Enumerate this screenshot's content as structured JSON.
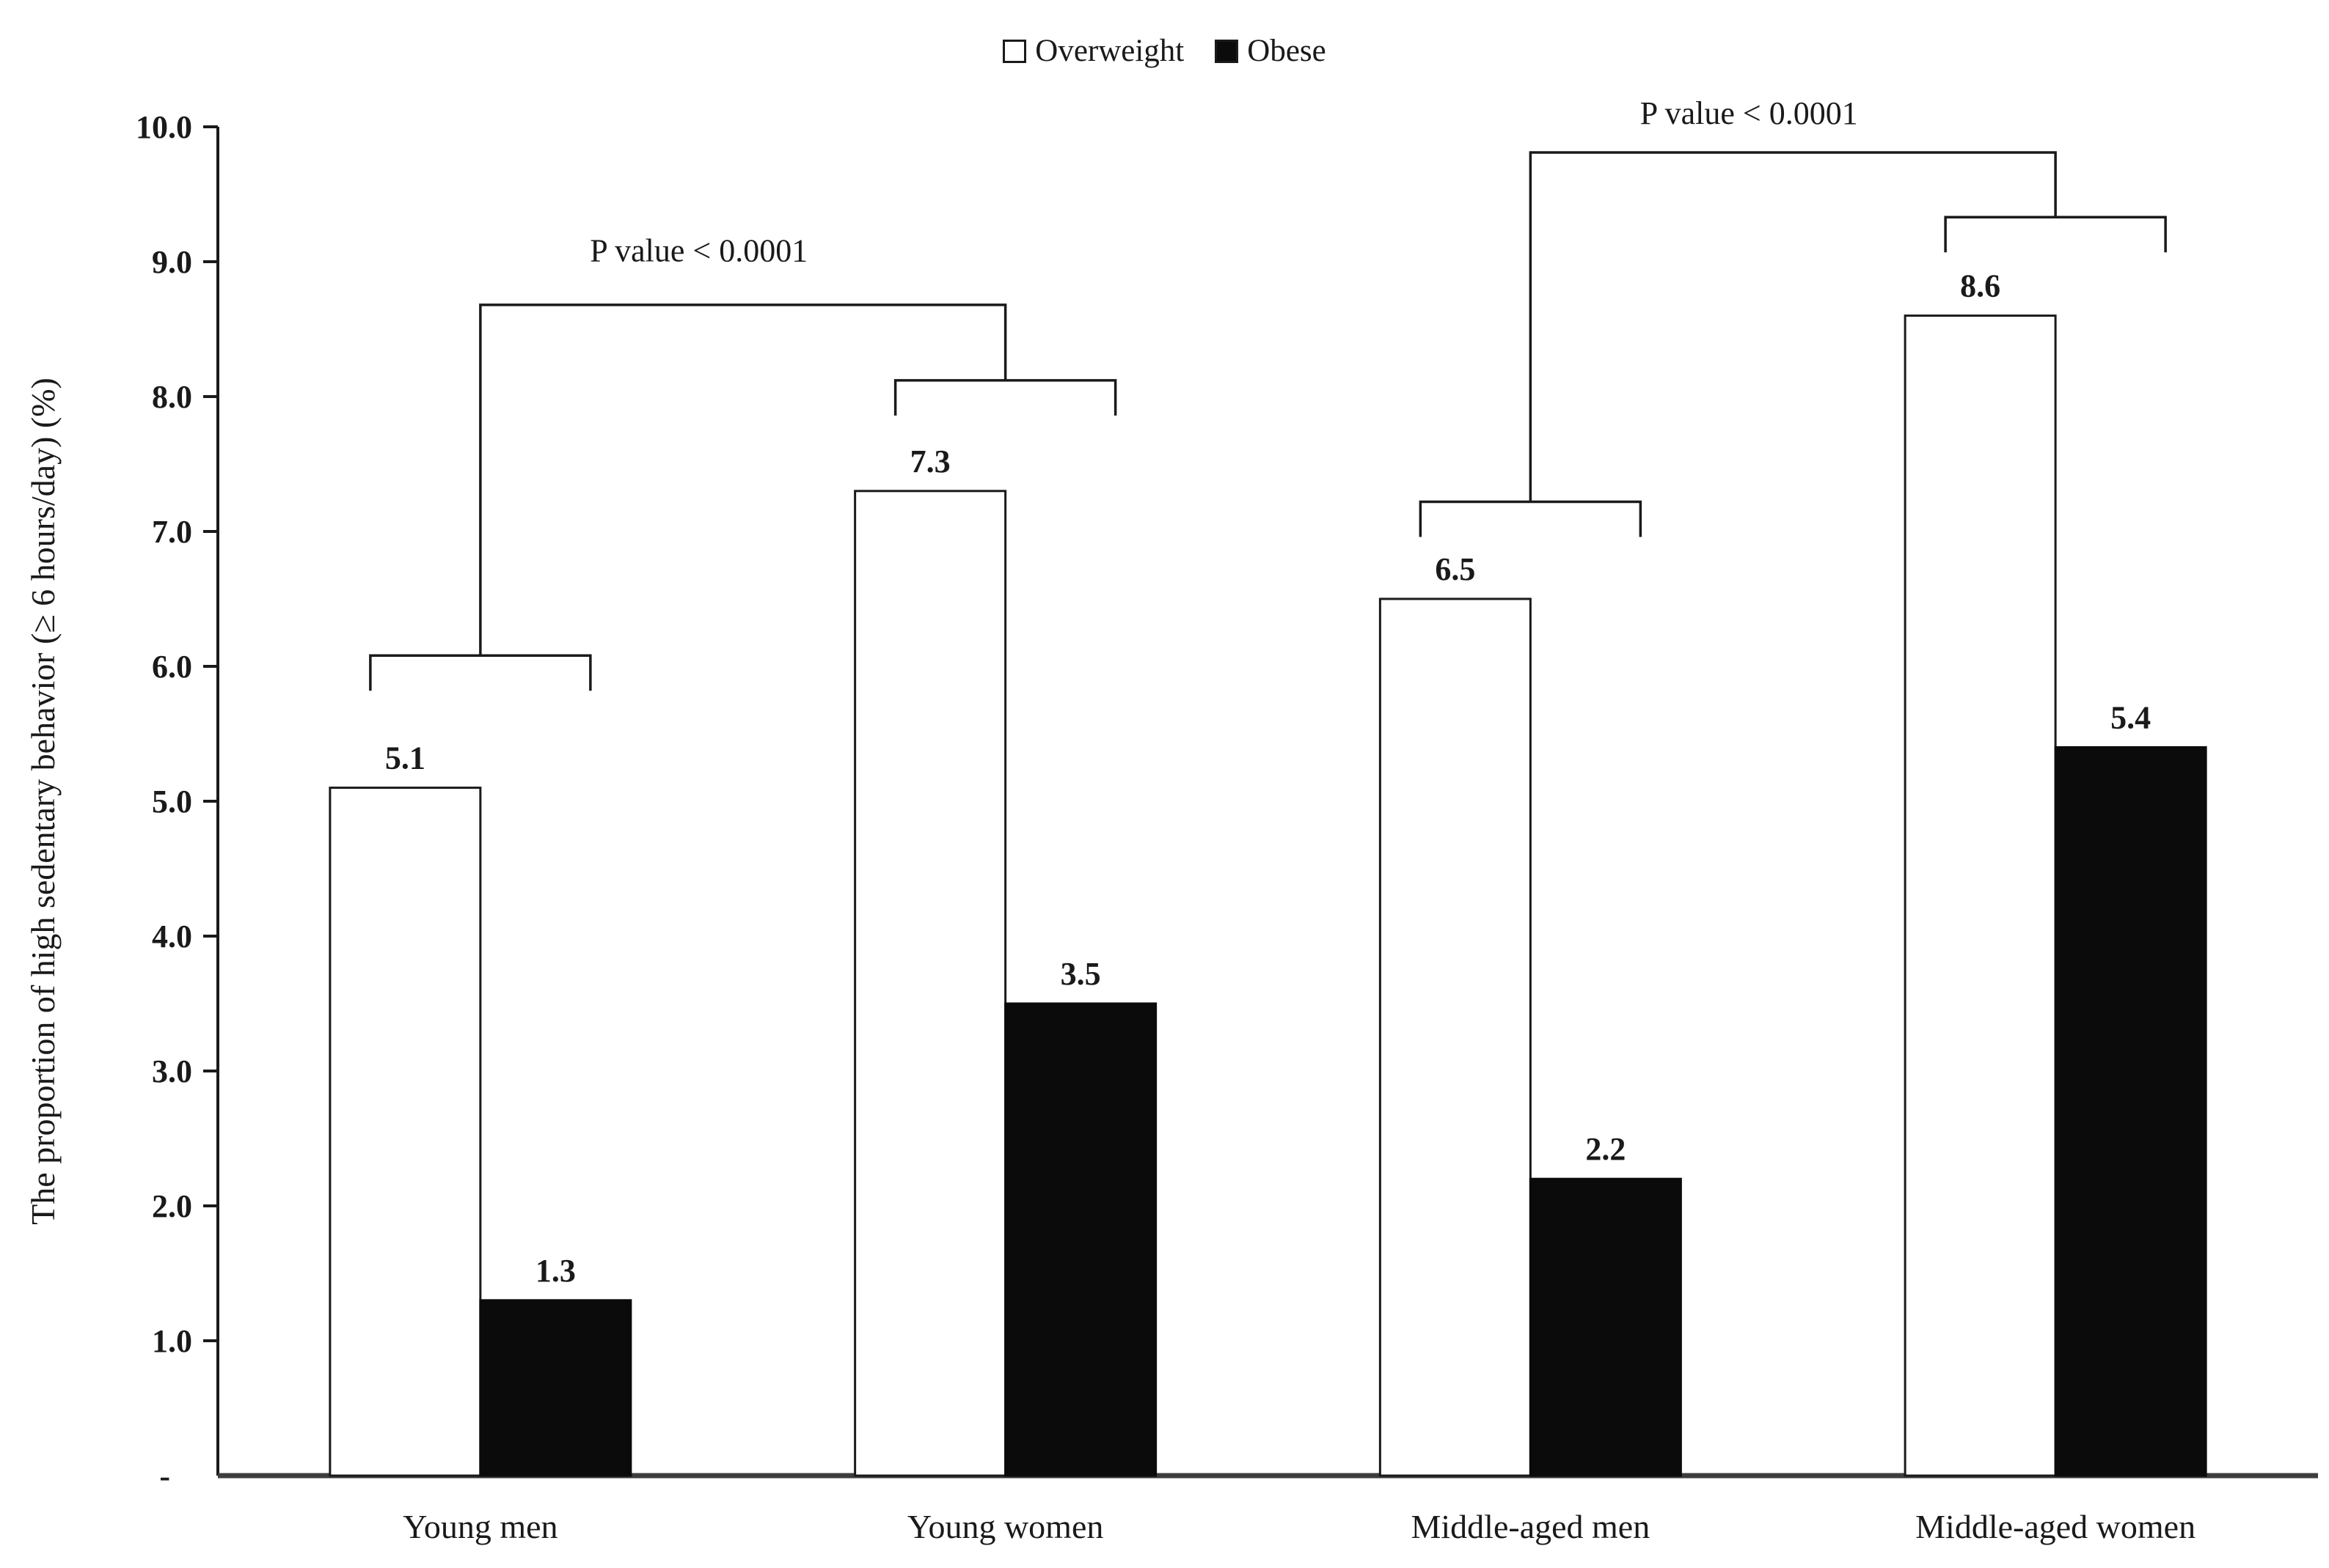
{
  "figure": {
    "background": "#ffffff",
    "ink": "#1a1a1a",
    "baseline_color": "#3d3d3d"
  },
  "legend": {
    "items": [
      {
        "label": "Overweight",
        "fill": "#ffffff"
      },
      {
        "label": "Obese",
        "fill": "#0b0b0b"
      }
    ]
  },
  "chart_data": {
    "type": "bar",
    "title": "",
    "xlabel": "",
    "ylabel": "The proportion of high sedentary behavior (≥ 6 hours/day) (%)",
    "ylim": [
      0,
      10
    ],
    "grid": false,
    "legend_position": "top-center",
    "yticks": [
      {
        "value": 10,
        "label": "10.0"
      },
      {
        "value": 9,
        "label": "9.0"
      },
      {
        "value": 8,
        "label": "8.0"
      },
      {
        "value": 7,
        "label": "7.0"
      },
      {
        "value": 6,
        "label": "6.0"
      },
      {
        "value": 5,
        "label": "5.0"
      },
      {
        "value": 4,
        "label": "4.0"
      },
      {
        "value": 3,
        "label": "3.0"
      },
      {
        "value": 2,
        "label": "2.0"
      },
      {
        "value": 1,
        "label": "1.0"
      },
      {
        "value": 0,
        "label": "-"
      }
    ],
    "categories": [
      "Young men",
      "Young women",
      "Middle-aged men",
      "Middle-aged women"
    ],
    "series": [
      {
        "name": "Overweight",
        "fill": "#ffffff",
        "values": [
          5.1,
          7.3,
          6.5,
          8.6
        ],
        "labels": [
          "5.1",
          "7.3",
          "6.5",
          "8.6"
        ]
      },
      {
        "name": "Obese",
        "fill": "#0b0b0b",
        "values": [
          1.3,
          3.5,
          2.2,
          5.4
        ],
        "labels": [
          "1.3",
          "3.5",
          "2.2",
          "5.4"
        ]
      }
    ],
    "annotations": [
      {
        "label": "P value < 0.0001",
        "group_a": 0,
        "group_b": 1,
        "bracket_a_y": 6.08,
        "bracket_b_y": 8.12,
        "line_y": 8.68,
        "label_y": 9.09
      },
      {
        "label": "P value < 0.0001",
        "group_a": 2,
        "group_b": 3,
        "bracket_a_y": 7.22,
        "bracket_b_y": 9.33,
        "line_y": 9.81,
        "label_y": 10.11
      }
    ]
  }
}
